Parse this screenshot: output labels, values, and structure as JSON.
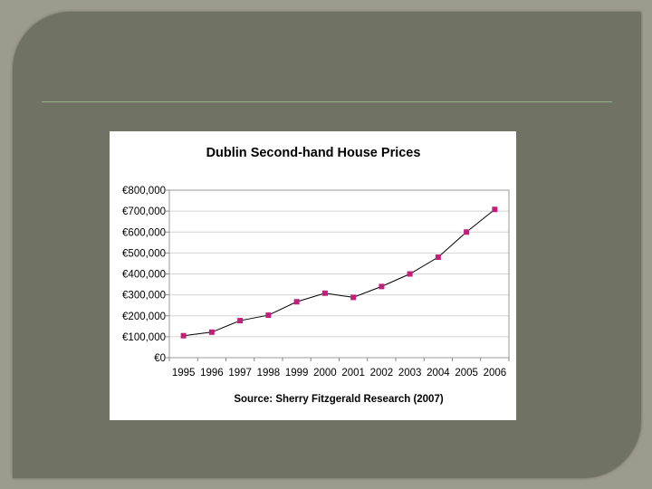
{
  "slide": {
    "frame_color": "#707263",
    "background_color": "#9c9c8e",
    "divider_color": "#96b08a"
  },
  "chart_data": {
    "type": "line",
    "title": "Dublin Second-hand House Prices",
    "source_note": "Source: Sherry Fitzgerald Research (2007)",
    "xlabel": "",
    "ylabel": "",
    "categories": [
      "1995",
      "1996",
      "1997",
      "1998",
      "1999",
      "2000",
      "2001",
      "2002",
      "2003",
      "2004",
      "2005",
      "2006"
    ],
    "series": [
      {
        "values": [
          105000,
          122000,
          177000,
          203000,
          267000,
          308000,
          288000,
          340000,
          400000,
          480000,
          600000,
          708000
        ],
        "line_color": "#000000",
        "marker_color": "#c0207a",
        "marker": "square"
      }
    ],
    "ylim": [
      0,
      800000
    ],
    "y_ticks": [
      0,
      100000,
      200000,
      300000,
      400000,
      500000,
      600000,
      700000,
      800000
    ],
    "y_tick_labels": [
      "€0",
      "€100,000",
      "€200,000",
      "€300,000",
      "€400,000",
      "€500,000",
      "€600,000",
      "€700,000",
      "€800,000"
    ],
    "grid": true,
    "legend": "none"
  }
}
